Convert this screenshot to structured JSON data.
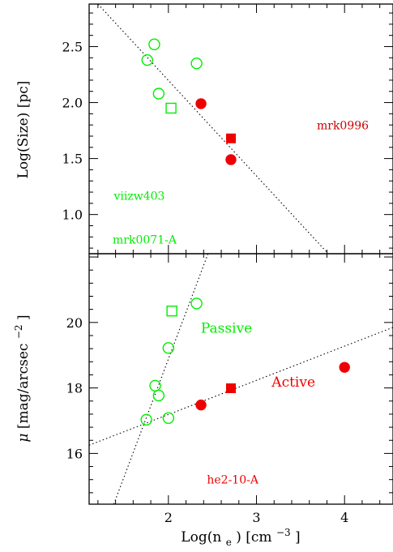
{
  "chart_data": [
    {
      "type": "scatter",
      "xlim": [
        1.1,
        4.55
      ],
      "ylim": [
        0.65,
        2.88
      ],
      "xlabel": "",
      "ylabel": "Log(Size) [pc]",
      "yticks": [
        1.0,
        1.5,
        2.0,
        2.5
      ],
      "ytick_labels": [
        "1.0",
        "1.5",
        "2.0",
        "2.5"
      ],
      "grid": false,
      "series": [
        {
          "marker": "open-circle",
          "color": "#00ee00",
          "x": [
            1.76,
            1.84,
            1.89,
            2.32
          ],
          "y": [
            2.38,
            2.52,
            2.08,
            2.35
          ]
        },
        {
          "marker": "open-square",
          "color": "#00ee00",
          "x": [
            2.03
          ],
          "y": [
            1.95
          ]
        },
        {
          "marker": "filled-circle",
          "color": "#ee0000",
          "x": [
            2.37,
            2.71
          ],
          "y": [
            1.99,
            1.49
          ]
        },
        {
          "marker": "filled-square",
          "color": "#ee0000",
          "x": [
            2.71
          ],
          "y": [
            1.68
          ]
        }
      ],
      "lines": [
        {
          "style": "dotted",
          "x": [
            1.2,
            3.85
          ],
          "y": [
            2.88,
            0.62
          ]
        }
      ],
      "annotations": [
        {
          "text": "mrk0996",
          "x": 3.98,
          "y": 1.76,
          "color": "#cc0000"
        },
        {
          "text": "viizw403",
          "x": 1.67,
          "y": 1.13,
          "color": "#00ee00"
        },
        {
          "text": "mrk0071-A",
          "x": 1.73,
          "y": 0.74,
          "color": "#00ee00"
        }
      ]
    },
    {
      "type": "scatter",
      "xlim": [
        1.1,
        4.55
      ],
      "ylim": [
        14.45,
        22.1
      ],
      "xlabel": "Log(n_e) [cm^-3]",
      "ylabel": "μ[mag/arcsec^-2]",
      "xticks": [
        2,
        3,
        4
      ],
      "xtick_labels": [
        "2",
        "3",
        "4"
      ],
      "yticks": [
        16,
        18,
        20
      ],
      "ytick_labels": [
        "16",
        "18",
        "20"
      ],
      "grid": false,
      "series": [
        {
          "marker": "open-circle",
          "color": "#00ee00",
          "x": [
            1.75,
            1.85,
            1.89,
            2.0,
            2.0,
            2.32
          ],
          "y": [
            17.03,
            18.07,
            17.77,
            19.22,
            17.08,
            20.58
          ]
        },
        {
          "marker": "open-square",
          "color": "#00ee00",
          "x": [
            2.04
          ],
          "y": [
            20.35
          ]
        },
        {
          "marker": "filled-circle",
          "color": "#ee0000",
          "x": [
            2.37,
            4.0
          ],
          "y": [
            17.48,
            18.63
          ]
        },
        {
          "marker": "filled-square",
          "color": "#ee0000",
          "x": [
            2.71
          ],
          "y": [
            17.99
          ]
        }
      ],
      "lines": [
        {
          "style": "dotted",
          "x": [
            1.1,
            4.55
          ],
          "y": [
            16.25,
            19.85
          ]
        },
        {
          "style": "dotted",
          "x": [
            1.38,
            2.45
          ],
          "y": [
            14.45,
            22.1
          ]
        }
      ],
      "annotations": [
        {
          "text": "Passive",
          "x": 2.66,
          "y": 19.68,
          "color": "#00ee00"
        },
        {
          "text": "Active",
          "x": 3.42,
          "y": 18.04,
          "color": "#ee0000"
        },
        {
          "text": "he2-10-A",
          "x": 2.73,
          "y": 15.08,
          "color": "#ee0000"
        }
      ]
    }
  ],
  "xlabel_display": {
    "main": "Log(n",
    "sub": "e",
    "rest": ")  [cm",
    "sup": "−3",
    "end": "]"
  },
  "ylabel2_display": {
    "mu": "μ",
    "main": "[mag/arcsec",
    "sup": "−2",
    "end": "]"
  }
}
